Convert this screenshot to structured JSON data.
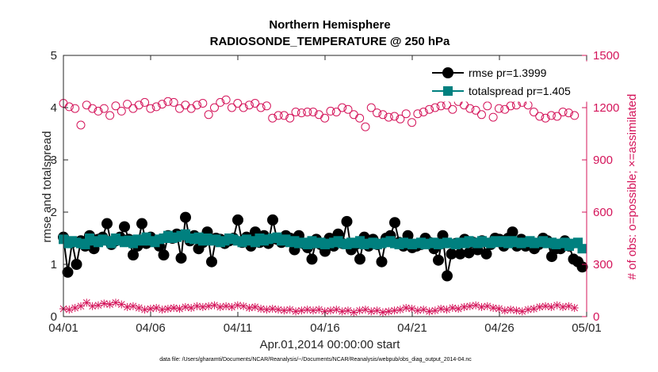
{
  "colors": {
    "rmse": "#000000",
    "spread": "#00807f",
    "obs": "#d4145a",
    "axis": "#262626"
  },
  "chart_data": {
    "type": "line",
    "title": "Northern Hemisphere",
    "subtitle": "RADIOSONDE_TEMPERATURE @ 250 hPa",
    "xlabel": "Apr.01,2014 00:00:00 start",
    "ylabel": "rmse and totalspread",
    "y2label": "# of obs: o=possible; ×=assimilated",
    "footnote": "data file: /Users/gharamti/Documents/NCAR/Reanalysis/~/Documents/NCAR/Reanalysis/webpub/obs_diag_output_2014-04.nc",
    "x_range": [
      0,
      30
    ],
    "ylim": [
      0,
      5
    ],
    "y2lim": [
      0,
      1500
    ],
    "x_ticks": [
      0,
      5,
      10,
      15,
      20,
      25,
      30
    ],
    "x_tick_labels": [
      "04/01",
      "04/06",
      "04/11",
      "04/16",
      "04/21",
      "04/26",
      "05/01"
    ],
    "y_ticks": [
      "0",
      "1",
      "2",
      "3",
      "4",
      "5"
    ],
    "y2_ticks": [
      "0",
      "300",
      "600",
      "900",
      "1200",
      "1500"
    ],
    "x_step_days": 0.25,
    "legend": {
      "position": "top-right",
      "entries": [
        "rmse pr=1.3999",
        "totalspread pr=1.405"
      ]
    },
    "series": [
      {
        "name": "rmse pr=1.3999",
        "axis": "left",
        "marker": "circle",
        "values": [
          1.52,
          0.85,
          1.42,
          1.0,
          1.45,
          1.35,
          1.55,
          1.3,
          1.48,
          1.52,
          1.78,
          1.38,
          1.45,
          1.52,
          1.72,
          1.48,
          1.18,
          1.35,
          1.78,
          1.4,
          1.52,
          1.45,
          1.35,
          1.18,
          1.55,
          1.5,
          1.58,
          1.12,
          1.9,
          1.45,
          1.55,
          1.3,
          1.42,
          1.62,
          1.05,
          1.5,
          1.48,
          1.4,
          1.45,
          1.5,
          1.85,
          1.42,
          1.52,
          1.35,
          1.62,
          1.42,
          1.55,
          1.4,
          1.85,
          1.48,
          1.42,
          1.55,
          1.5,
          1.28,
          1.55,
          1.4,
          1.32,
          1.1,
          1.48,
          1.38,
          1.25,
          1.5,
          1.35,
          1.58,
          1.4,
          1.82,
          1.28,
          1.38,
          1.1,
          1.52,
          1.35,
          1.48,
          1.38,
          1.05,
          1.5,
          1.55,
          1.8,
          1.42,
          1.35,
          1.55,
          1.32,
          1.35,
          1.38,
          1.5,
          1.42,
          1.3,
          1.08,
          1.55,
          0.78,
          1.2,
          1.4,
          1.2,
          1.48,
          1.22,
          1.42,
          1.28,
          1.45,
          1.2,
          1.38,
          1.5,
          1.48,
          1.35,
          1.5,
          1.62,
          1.35,
          1.48,
          1.35,
          1.42,
          1.3,
          1.38,
          1.5,
          1.45,
          1.15,
          1.3,
          1.3,
          1.45,
          1.35,
          1.1,
          1.05,
          0.95
        ]
      },
      {
        "name": "totalspread pr=1.405",
        "axis": "left",
        "marker": "square",
        "values": [
          1.48,
          1.4,
          1.45,
          1.42,
          1.4,
          1.38,
          1.5,
          1.45,
          1.42,
          1.48,
          1.45,
          1.4,
          1.5,
          1.45,
          1.42,
          1.46,
          1.4,
          1.48,
          1.45,
          1.52,
          1.45,
          1.42,
          1.48,
          1.5,
          1.55,
          1.5,
          1.52,
          1.55,
          1.58,
          1.5,
          1.48,
          1.52,
          1.45,
          1.5,
          1.45,
          1.48,
          1.42,
          1.45,
          1.5,
          1.48,
          1.45,
          1.42,
          1.48,
          1.45,
          1.42,
          1.5,
          1.45,
          1.48,
          1.5,
          1.52,
          1.45,
          1.48,
          1.42,
          1.45,
          1.4,
          1.42,
          1.38,
          1.45,
          1.4,
          1.42,
          1.38,
          1.4,
          1.42,
          1.45,
          1.4,
          1.38,
          1.42,
          1.4,
          1.45,
          1.38,
          1.4,
          1.42,
          1.38,
          1.4,
          1.42,
          1.45,
          1.4,
          1.38,
          1.42,
          1.4,
          1.38,
          1.4,
          1.42,
          1.38,
          1.4,
          1.42,
          1.38,
          1.4,
          1.42,
          1.4,
          1.38,
          1.42,
          1.4,
          1.45,
          1.42,
          1.4,
          1.45,
          1.42,
          1.4,
          1.45,
          1.42,
          1.45,
          1.4,
          1.45,
          1.42,
          1.4,
          1.42,
          1.45,
          1.4,
          1.42,
          1.45,
          1.4,
          1.42,
          1.38,
          1.4,
          1.42,
          1.35,
          1.4,
          1.42,
          1.3
        ]
      },
      {
        "name": "obs possible",
        "axis": "right",
        "marker": "circle-open",
        "values": [
          1225,
          1205,
          1195,
          1100,
          1215,
          1195,
          1180,
          1195,
          1155,
          1210,
          1180,
          1220,
          1195,
          1215,
          1230,
          1195,
          1205,
          1220,
          1235,
          1230,
          1195,
          1215,
          1195,
          1215,
          1225,
          1160,
          1200,
          1230,
          1245,
          1200,
          1225,
          1200,
          1215,
          1225,
          1200,
          1210,
          1140,
          1155,
          1155,
          1140,
          1175,
          1170,
          1175,
          1175,
          1160,
          1140,
          1180,
          1175,
          1200,
          1190,
          1160,
          1140,
          1090,
          1200,
          1170,
          1160,
          1145,
          1150,
          1135,
          1165,
          1115,
          1165,
          1175,
          1190,
          1200,
          1210,
          1215,
          1190,
          1235,
          1215,
          1195,
          1185,
          1160,
          1210,
          1145,
          1195,
          1190,
          1210,
          1215,
          1230,
          1215,
          1175,
          1150,
          1140,
          1155,
          1150,
          1175,
          1170,
          1155
        ],
        "x_step_days": 0.333
      },
      {
        "name": "obs assimilated",
        "axis": "right",
        "marker": "x",
        "values": [
          45,
          40,
          50,
          60,
          80,
          60,
          65,
          75,
          70,
          80,
          70,
          55,
          60,
          50,
          40,
          45,
          50,
          40,
          45,
          50,
          45,
          55,
          50,
          60,
          55,
          60,
          65,
          55,
          60,
          55,
          65,
          60,
          50,
          55,
          45,
          40,
          45,
          40,
          35,
          40,
          30,
          35,
          40,
          35,
          40,
          30,
          35,
          40,
          30,
          35,
          25,
          35,
          40,
          30,
          35,
          25,
          30,
          35,
          40,
          50,
          45,
          35,
          40,
          30,
          35,
          45,
          40,
          50,
          45,
          55,
          60,
          65,
          55,
          60,
          50,
          45,
          35,
          40,
          35,
          30,
          40,
          45,
          55,
          60,
          55,
          65,
          55,
          60,
          50
        ],
        "x_step_days": 0.333
      }
    ]
  }
}
